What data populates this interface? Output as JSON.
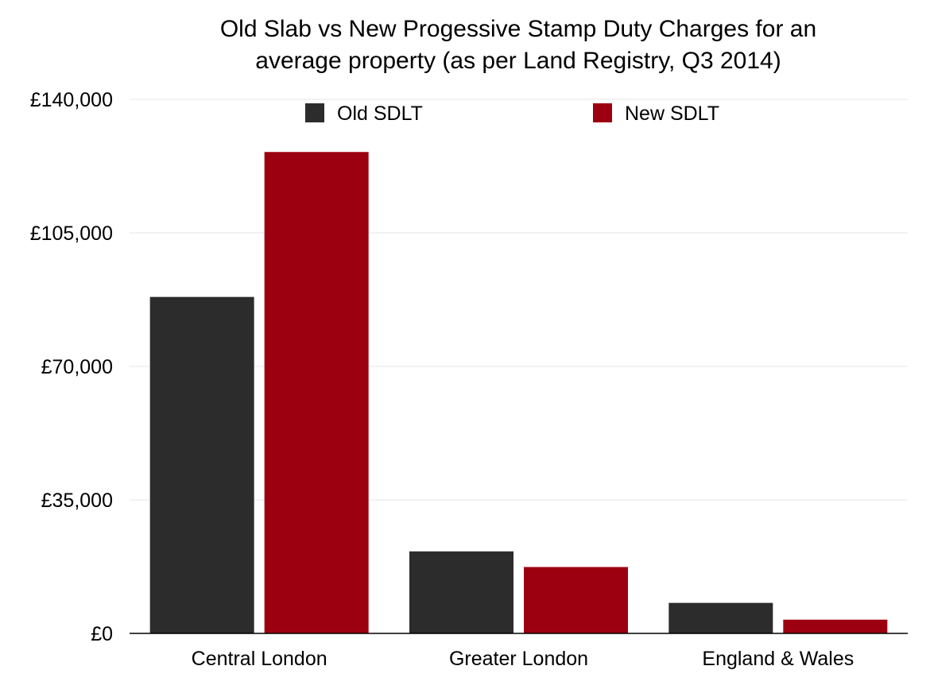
{
  "chart_data": {
    "type": "bar",
    "title_lines": [
      "Old Slab vs New Progessive Stamp Duty Charges for an",
      "average property (as per Land Registry, Q3 2014)"
    ],
    "categories": [
      "Central London",
      "Greater London",
      "England & Wales"
    ],
    "series": [
      {
        "name": "Old SDLT",
        "color": "#2c2c2c",
        "values": [
          88200,
          21500,
          8000
        ]
      },
      {
        "name": "New SDLT",
        "color": "#9c0010",
        "values": [
          126200,
          17400,
          3600
        ]
      }
    ],
    "y_ticks": [
      0,
      35000,
      70000,
      105000,
      140000
    ],
    "y_tick_labels": [
      "£0",
      "£35,000",
      "£70,000",
      "£105,000",
      "£140,000"
    ],
    "ylim": [
      0,
      140000
    ],
    "xlabel": "",
    "ylabel": "",
    "grid": true,
    "legend_position": "top"
  }
}
